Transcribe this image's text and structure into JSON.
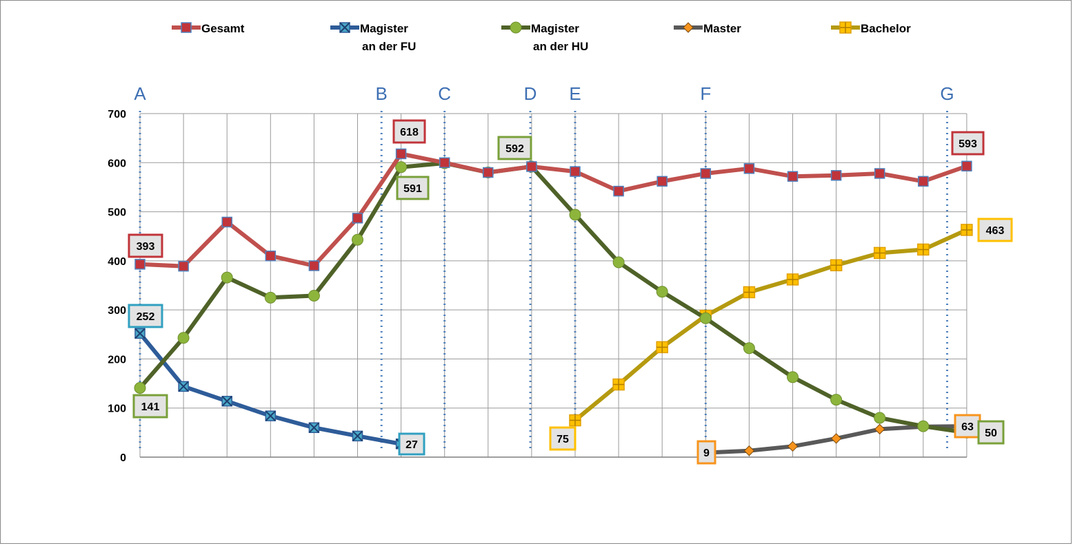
{
  "chart_data": {
    "type": "line",
    "title": "",
    "xlabel": "",
    "ylabel": "",
    "ylim": [
      0,
      700
    ],
    "yticks": [
      "0",
      "100",
      "200",
      "300",
      "400",
      "500",
      "600",
      "700"
    ],
    "x_count": 20,
    "grid": true,
    "legend_position": "top",
    "series": [
      {
        "key": "gesamt",
        "name_lines": [
          "Gesamt"
        ],
        "color": "#c0504d",
        "marker": "square",
        "marker_fill": "#c0343a",
        "values": [
          393,
          389,
          479,
          410,
          390,
          487,
          618,
          600,
          580,
          592,
          582,
          542,
          562,
          578,
          588,
          572,
          574,
          578,
          562,
          593
        ]
      },
      {
        "key": "magister_fu",
        "name_lines": [
          "Magister",
          "an der FU"
        ],
        "color": "#2e5c99",
        "marker": "x",
        "marker_fill": "#4aa8c8",
        "values": [
          252,
          144,
          114,
          84,
          60,
          43,
          27,
          null,
          null,
          null,
          null,
          null,
          null,
          null,
          null,
          null,
          null,
          null,
          null,
          null
        ]
      },
      {
        "key": "magister_hu",
        "name_lines": [
          "Magister",
          "an der HU"
        ],
        "color": "#4f6228",
        "marker": "circle",
        "marker_fill": "#8db53c",
        "values": [
          141,
          243,
          366,
          325,
          329,
          443,
          591,
          599,
          580,
          592,
          494,
          397,
          337,
          283,
          222,
          163,
          117,
          80,
          63,
          50
        ]
      },
      {
        "key": "master",
        "name_lines": [
          "Master"
        ],
        "color": "#595959",
        "marker": "diamond",
        "marker_fill": "#f7941d",
        "values": [
          null,
          null,
          null,
          null,
          null,
          null,
          null,
          null,
          null,
          null,
          null,
          null,
          null,
          9,
          13,
          22,
          38,
          57,
          62,
          63
        ]
      },
      {
        "key": "bachelor",
        "name_lines": [
          "Bachelor"
        ],
        "color": "#b59a10",
        "marker": "plus",
        "marker_fill": "#ffc000",
        "values": [
          null,
          null,
          null,
          null,
          null,
          null,
          null,
          null,
          null,
          null,
          75,
          148,
          224,
          288,
          336,
          362,
          391,
          416,
          423,
          463
        ]
      }
    ],
    "phase_markers": [
      {
        "label": "A",
        "x": 0
      },
      {
        "label": "B",
        "x": 5.55
      },
      {
        "label": "C",
        "x": 7
      },
      {
        "label": "D",
        "x": 8.97
      },
      {
        "label": "E",
        "x": 10
      },
      {
        "label": "F",
        "x": 13
      },
      {
        "label": "G",
        "x": 18.55
      }
    ],
    "annotations": [
      {
        "text": "393",
        "series": "gesamt",
        "color": "#c0343a"
      },
      {
        "text": "252",
        "series": "magister_fu",
        "color": "#31a0c0"
      },
      {
        "text": "141",
        "series": "magister_hu",
        "color": "#79a03a"
      },
      {
        "text": "618",
        "series": "gesamt",
        "color": "#c0343a"
      },
      {
        "text": "591",
        "series": "magister_hu",
        "color": "#79a03a"
      },
      {
        "text": "27",
        "series": "magister_fu",
        "color": "#31a0c0"
      },
      {
        "text": "592",
        "series": "magister_hu",
        "color": "#79a03a"
      },
      {
        "text": "75",
        "series": "bachelor",
        "color": "#ffc000"
      },
      {
        "text": "9",
        "series": "master",
        "color": "#f7941d"
      },
      {
        "text": "593",
        "series": "gesamt",
        "color": "#c0343a"
      },
      {
        "text": "463",
        "series": "bachelor",
        "color": "#ffc000"
      },
      {
        "text": "63",
        "series": "master",
        "color": "#f7941d"
      },
      {
        "text": "50",
        "series": "magister_hu",
        "color": "#79a03a"
      }
    ]
  }
}
